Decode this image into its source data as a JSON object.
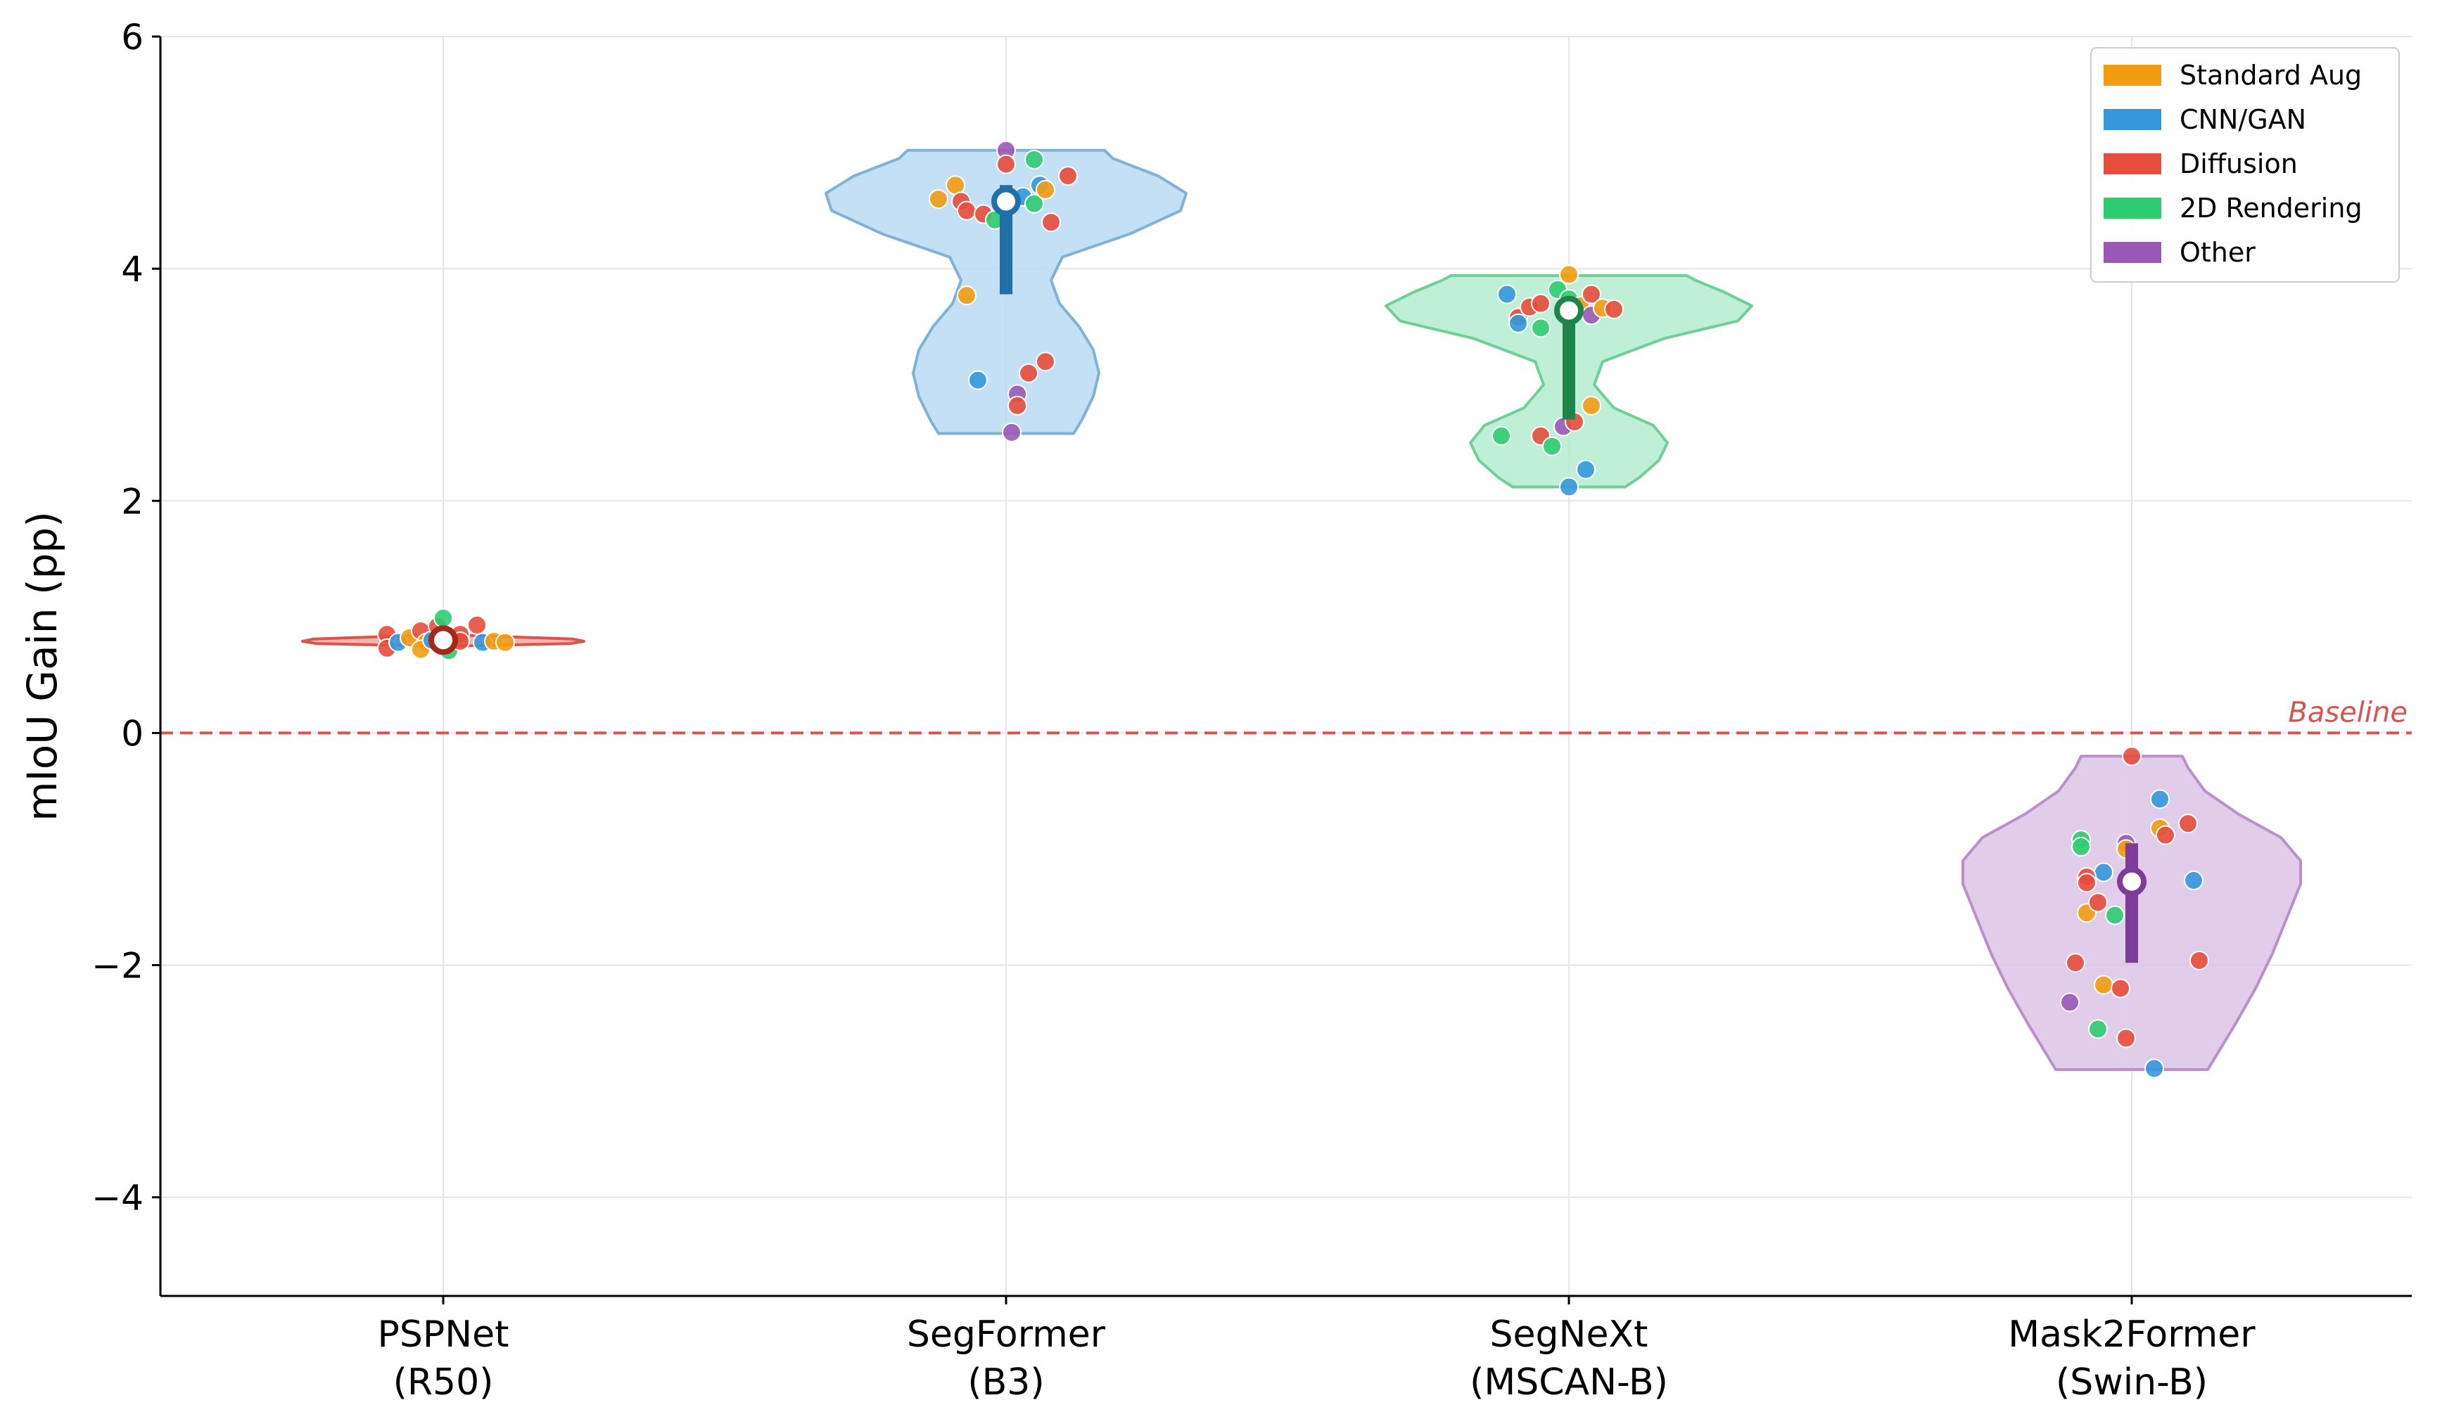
{
  "chart_data": {
    "type": "violin",
    "title": "",
    "xlabel": "",
    "ylabel": "mIoU Gain (pp)",
    "ylim": [
      -4.85,
      6.0
    ],
    "yticks": [
      -4,
      -2,
      0,
      2,
      4,
      6
    ],
    "ytick_labels": [
      "−4",
      "−2",
      "0",
      "2",
      "4",
      "6"
    ],
    "grid": true,
    "legend_position": "top-right",
    "baseline": {
      "value": 0,
      "label": "Baseline",
      "color": "#d9534f"
    },
    "categories": [
      {
        "line1": "PSPNet",
        "line2": "(R50)"
      },
      {
        "line1": "SegFormer",
        "line2": "(B3)"
      },
      {
        "line1": "SegNeXt",
        "line2": "(MSCAN-B)"
      },
      {
        "line1": "Mask2Former",
        "line2": "(Swin-B)"
      }
    ],
    "violins": [
      {
        "fill": "#f1a9a0",
        "stroke": "#d9534f",
        "dark": "#a5281b",
        "median": 0.8,
        "q1": 0.76,
        "q3": 0.83,
        "profile": [
          [
            0.73,
            0.0
          ],
          [
            0.75,
            0.06
          ],
          [
            0.77,
            0.45
          ],
          [
            0.79,
            0.5
          ],
          [
            0.81,
            0.46
          ],
          [
            0.84,
            0.1
          ],
          [
            0.85,
            0.0
          ]
        ]
      },
      {
        "fill": "#b8daf2",
        "stroke": "#7fb2d8",
        "dark": "#1f6fa8",
        "median": 4.58,
        "q1": 3.78,
        "q3": 4.72,
        "profile": [
          [
            2.58,
            0.24
          ],
          [
            2.7,
            0.27
          ],
          [
            2.9,
            0.31
          ],
          [
            3.1,
            0.33
          ],
          [
            3.3,
            0.31
          ],
          [
            3.5,
            0.26
          ],
          [
            3.7,
            0.19
          ],
          [
            3.9,
            0.16
          ],
          [
            4.1,
            0.2
          ],
          [
            4.3,
            0.44
          ],
          [
            4.5,
            0.62
          ],
          [
            4.65,
            0.64
          ],
          [
            4.8,
            0.54
          ],
          [
            4.95,
            0.38
          ],
          [
            5.02,
            0.35
          ]
        ]
      },
      {
        "fill": "#b5ecd0",
        "stroke": "#6fcf97",
        "dark": "#1e8449",
        "median": 3.64,
        "q1": 2.7,
        "q3": 3.7,
        "profile": [
          [
            2.12,
            0.2
          ],
          [
            2.2,
            0.25
          ],
          [
            2.35,
            0.32
          ],
          [
            2.5,
            0.35
          ],
          [
            2.65,
            0.3
          ],
          [
            2.8,
            0.16
          ],
          [
            3.0,
            0.09
          ],
          [
            3.2,
            0.12
          ],
          [
            3.4,
            0.34
          ],
          [
            3.55,
            0.6
          ],
          [
            3.68,
            0.65
          ],
          [
            3.8,
            0.55
          ],
          [
            3.9,
            0.45
          ],
          [
            3.94,
            0.42
          ]
        ]
      },
      {
        "fill": "#dcc3e6",
        "stroke": "#bb8fce",
        "dark": "#7d3c98",
        "median": -1.28,
        "q1": -1.98,
        "q3": -0.95,
        "profile": [
          [
            -2.9,
            0.27
          ],
          [
            -2.7,
            0.32
          ],
          [
            -2.5,
            0.37
          ],
          [
            -2.2,
            0.44
          ],
          [
            -1.9,
            0.5
          ],
          [
            -1.6,
            0.55
          ],
          [
            -1.3,
            0.6
          ],
          [
            -1.1,
            0.6
          ],
          [
            -0.9,
            0.53
          ],
          [
            -0.7,
            0.38
          ],
          [
            -0.5,
            0.26
          ],
          [
            -0.3,
            0.2
          ],
          [
            -0.2,
            0.18
          ]
        ]
      }
    ],
    "points": [
      [
        {
          "dx": -0.1,
          "y": 0.85,
          "c": 2
        },
        {
          "dx": -0.1,
          "y": 0.73,
          "c": 2
        },
        {
          "dx": -0.08,
          "y": 0.78,
          "c": 1
        },
        {
          "dx": -0.06,
          "y": 0.82,
          "c": 0
        },
        {
          "dx": -0.04,
          "y": 0.88,
          "c": 2
        },
        {
          "dx": -0.03,
          "y": 0.78,
          "c": 0
        },
        {
          "dx": -0.04,
          "y": 0.72,
          "c": 0
        },
        {
          "dx": -0.02,
          "y": 0.8,
          "c": 1
        },
        {
          "dx": -0.01,
          "y": 0.92,
          "c": 2
        },
        {
          "dx": 0.0,
          "y": 0.99,
          "c": 3
        },
        {
          "dx": 0.0,
          "y": 0.75,
          "c": 1
        },
        {
          "dx": 0.01,
          "y": 0.71,
          "c": 3
        },
        {
          "dx": 0.03,
          "y": 0.85,
          "c": 2
        },
        {
          "dx": 0.03,
          "y": 0.79,
          "c": 2
        },
        {
          "dx": 0.06,
          "y": 0.93,
          "c": 2
        },
        {
          "dx": 0.07,
          "y": 0.78,
          "c": 1
        },
        {
          "dx": 0.09,
          "y": 0.79,
          "c": 0
        },
        {
          "dx": 0.11,
          "y": 0.78,
          "c": 0
        }
      ],
      [
        {
          "dx": -0.12,
          "y": 4.6,
          "c": 0
        },
        {
          "dx": -0.09,
          "y": 4.72,
          "c": 0
        },
        {
          "dx": -0.08,
          "y": 4.58,
          "c": 2
        },
        {
          "dx": -0.07,
          "y": 4.5,
          "c": 2
        },
        {
          "dx": -0.04,
          "y": 4.47,
          "c": 2
        },
        {
          "dx": -0.02,
          "y": 4.42,
          "c": 3
        },
        {
          "dx": 0.0,
          "y": 5.02,
          "c": 4
        },
        {
          "dx": 0.0,
          "y": 4.9,
          "c": 2
        },
        {
          "dx": 0.03,
          "y": 4.62,
          "c": 1
        },
        {
          "dx": 0.05,
          "y": 4.56,
          "c": 3
        },
        {
          "dx": 0.05,
          "y": 4.94,
          "c": 3
        },
        {
          "dx": 0.06,
          "y": 4.72,
          "c": 1
        },
        {
          "dx": 0.07,
          "y": 4.68,
          "c": 0
        },
        {
          "dx": 0.08,
          "y": 4.4,
          "c": 2
        },
        {
          "dx": 0.11,
          "y": 4.8,
          "c": 2
        },
        {
          "dx": -0.07,
          "y": 3.77,
          "c": 0
        },
        {
          "dx": -0.05,
          "y": 3.04,
          "c": 1
        },
        {
          "dx": 0.02,
          "y": 2.92,
          "c": 4
        },
        {
          "dx": 0.02,
          "y": 2.82,
          "c": 2
        },
        {
          "dx": 0.04,
          "y": 3.1,
          "c": 2
        },
        {
          "dx": 0.07,
          "y": 3.2,
          "c": 2
        },
        {
          "dx": 0.01,
          "y": 2.59,
          "c": 4
        }
      ],
      [
        {
          "dx": -0.11,
          "y": 3.78,
          "c": 1
        },
        {
          "dx": -0.09,
          "y": 3.58,
          "c": 2
        },
        {
          "dx": -0.09,
          "y": 3.53,
          "c": 1
        },
        {
          "dx": -0.07,
          "y": 3.67,
          "c": 2
        },
        {
          "dx": -0.05,
          "y": 3.7,
          "c": 2
        },
        {
          "dx": -0.05,
          "y": 3.49,
          "c": 3
        },
        {
          "dx": -0.02,
          "y": 3.82,
          "c": 3
        },
        {
          "dx": 0.0,
          "y": 3.95,
          "c": 0
        },
        {
          "dx": 0.0,
          "y": 3.74,
          "c": 3
        },
        {
          "dx": 0.02,
          "y": 3.68,
          "c": 0
        },
        {
          "dx": 0.04,
          "y": 3.6,
          "c": 4
        },
        {
          "dx": 0.04,
          "y": 3.78,
          "c": 2
        },
        {
          "dx": 0.06,
          "y": 3.66,
          "c": 0
        },
        {
          "dx": 0.08,
          "y": 3.65,
          "c": 2
        },
        {
          "dx": -0.12,
          "y": 2.56,
          "c": 3
        },
        {
          "dx": -0.05,
          "y": 2.56,
          "c": 2
        },
        {
          "dx": -0.03,
          "y": 2.47,
          "c": 3
        },
        {
          "dx": -0.01,
          "y": 2.64,
          "c": 4
        },
        {
          "dx": 0.01,
          "y": 2.68,
          "c": 2
        },
        {
          "dx": 0.04,
          "y": 2.82,
          "c": 0
        },
        {
          "dx": 0.03,
          "y": 2.27,
          "c": 1
        },
        {
          "dx": 0.0,
          "y": 2.12,
          "c": 1
        }
      ],
      [
        {
          "dx": 0.0,
          "y": -0.2,
          "c": 2
        },
        {
          "dx": 0.05,
          "y": -0.57,
          "c": 1
        },
        {
          "dx": 0.1,
          "y": -0.78,
          "c": 2
        },
        {
          "dx": 0.05,
          "y": -0.82,
          "c": 0
        },
        {
          "dx": 0.06,
          "y": -0.88,
          "c": 2
        },
        {
          "dx": -0.09,
          "y": -0.92,
          "c": 3
        },
        {
          "dx": -0.09,
          "y": -0.98,
          "c": 3
        },
        {
          "dx": -0.01,
          "y": -0.95,
          "c": 4
        },
        {
          "dx": -0.01,
          "y": -1.0,
          "c": 0
        },
        {
          "dx": -0.05,
          "y": -1.2,
          "c": 1
        },
        {
          "dx": -0.08,
          "y": -1.24,
          "c": 2
        },
        {
          "dx": -0.08,
          "y": -1.29,
          "c": 2
        },
        {
          "dx": 0.11,
          "y": -1.27,
          "c": 1
        },
        {
          "dx": -0.08,
          "y": -1.55,
          "c": 0
        },
        {
          "dx": -0.06,
          "y": -1.46,
          "c": 2
        },
        {
          "dx": -0.03,
          "y": -1.57,
          "c": 3
        },
        {
          "dx": -0.1,
          "y": -1.98,
          "c": 2
        },
        {
          "dx": 0.12,
          "y": -1.96,
          "c": 2
        },
        {
          "dx": -0.05,
          "y": -2.17,
          "c": 0
        },
        {
          "dx": -0.02,
          "y": -2.2,
          "c": 2
        },
        {
          "dx": -0.11,
          "y": -2.32,
          "c": 4
        },
        {
          "dx": -0.06,
          "y": -2.55,
          "c": 3
        },
        {
          "dx": -0.01,
          "y": -2.63,
          "c": 2
        },
        {
          "dx": 0.04,
          "y": -2.89,
          "c": 1
        }
      ]
    ],
    "legend": [
      {
        "label": "Standard Aug",
        "color": "#f39c12"
      },
      {
        "label": "CNN/GAN",
        "color": "#3498db"
      },
      {
        "label": "Diffusion",
        "color": "#e74c3c"
      },
      {
        "label": "2D Rendering",
        "color": "#2ecc71"
      },
      {
        "label": "Other",
        "color": "#9b59b6"
      }
    ]
  }
}
